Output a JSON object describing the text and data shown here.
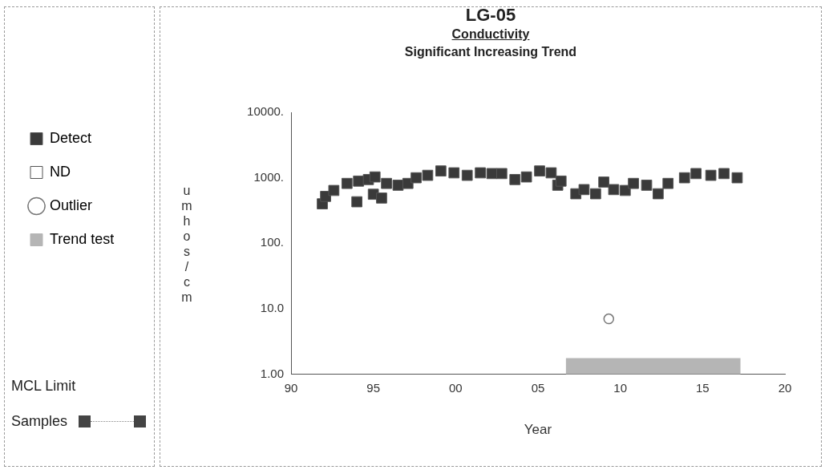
{
  "chart_data": {
    "type": "scatter",
    "title": "LG-05",
    "subtitle": "Conductivity",
    "annotations": [
      "Significant Increasing Trend",
      "MCL Limit",
      "Samples"
    ],
    "xlabel": "Year",
    "ylabel": "umhos/cm",
    "xlim": [
      1990,
      2020
    ],
    "xticks": [
      {
        "value": 1990,
        "label": "90"
      },
      {
        "value": 1995,
        "label": "95"
      },
      {
        "value": 2000,
        "label": "00"
      },
      {
        "value": 2005,
        "label": "05"
      },
      {
        "value": 2010,
        "label": "10"
      },
      {
        "value": 2015,
        "label": "15"
      },
      {
        "value": 2020,
        "label": "20"
      }
    ],
    "ylim": [
      1,
      10000
    ],
    "yticks": [
      {
        "value": 1,
        "label": "1.00"
      },
      {
        "value": 10,
        "label": "10.0"
      },
      {
        "value": 100,
        "label": "100."
      },
      {
        "value": 1000,
        "label": "1000."
      },
      {
        "value": 10000,
        "label": "10000."
      }
    ],
    "log": "y",
    "grid": false,
    "legend": "left",
    "marker": "square",
    "bands": [
      {
        "axis": "x",
        "from": 2006.7,
        "to": 2017.3,
        "label": "Trend test",
        "color": "#b5b5b5"
      }
    ],
    "series": [
      {
        "name": "Detect",
        "color": "#3a3a3a",
        "x": [
          1991.9,
          1992.1,
          1992.6,
          1993.4,
          1994.0,
          1994.1,
          1994.7,
          1995.0,
          1995.1,
          1995.5,
          1995.8,
          1996.5,
          1997.1,
          1997.6,
          1998.3,
          1999.1,
          1999.9,
          2000.7,
          2001.5,
          2002.2,
          2002.8,
          2003.6,
          2004.3,
          2005.1,
          2005.8,
          2006.2,
          2006.4,
          2007.3,
          2007.8,
          2008.5,
          2009.0,
          2009.6,
          2010.3,
          2010.8,
          2011.6,
          2012.3,
          2012.9,
          2013.9,
          2014.6,
          2015.5,
          2016.3,
          2017.1
        ],
        "values": [
          400,
          520,
          640,
          820,
          430,
          890,
          940,
          560,
          1030,
          490,
          820,
          770,
          820,
          1000,
          1090,
          1270,
          1190,
          1090,
          1190,
          1160,
          1160,
          940,
          1030,
          1270,
          1190,
          770,
          890,
          570,
          660,
          570,
          860,
          660,
          640,
          820,
          770,
          570,
          820,
          1000,
          1160,
          1090,
          1160,
          1000
        ]
      },
      {
        "name": "ND",
        "color": "#ffffff"
      },
      {
        "name": "Outlier",
        "color": "#777777",
        "marker": "circle",
        "x": [
          2009.3
        ],
        "values": [
          7
        ]
      }
    ]
  }
}
